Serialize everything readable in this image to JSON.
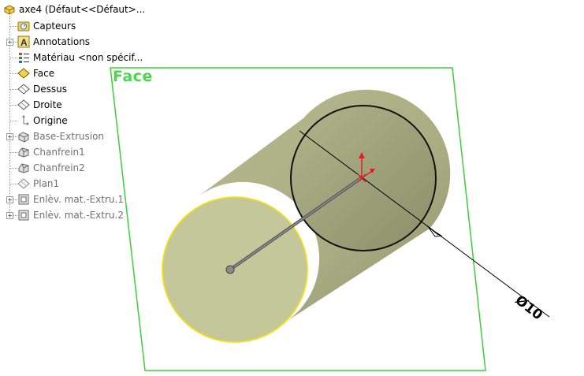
{
  "feature_tree": {
    "root": {
      "label": "axe4  (Défaut<<Défaut>...",
      "icon": "part-icon"
    },
    "items": [
      {
        "label": "Capteurs",
        "icon": "sensor-folder-icon",
        "expandable": false,
        "dim": false
      },
      {
        "label": "Annotations",
        "icon": "annotation-icon",
        "expandable": true,
        "dim": false
      },
      {
        "label": "Matériau <non spécif...",
        "icon": "material-icon",
        "expandable": false,
        "dim": false
      },
      {
        "label": "Face",
        "icon": "plane-icon",
        "expandable": false,
        "dim": false,
        "selected_plane": true
      },
      {
        "label": "Dessus",
        "icon": "plane-icon",
        "expandable": false,
        "dim": false
      },
      {
        "label": "Droite",
        "icon": "plane-icon",
        "expandable": false,
        "dim": false
      },
      {
        "label": "Origine",
        "icon": "origin-icon",
        "expandable": false,
        "dim": false
      },
      {
        "label": "Base-Extrusion",
        "icon": "extrude-feature-icon",
        "expandable": true,
        "dim": true
      },
      {
        "label": "Chanfrein1",
        "icon": "chamfer-icon",
        "expandable": false,
        "dim": true
      },
      {
        "label": "Chanfrein2",
        "icon": "chamfer-icon",
        "expandable": false,
        "dim": true
      },
      {
        "label": "Plan1",
        "icon": "plane-icon",
        "expandable": false,
        "dim": true
      },
      {
        "label": "Enlèv. mat.-Extru.1",
        "icon": "cut-extrude-icon",
        "expandable": true,
        "dim": true
      },
      {
        "label": "Enlèv. mat.-Extru.2",
        "icon": "cut-extrude-icon",
        "expandable": true,
        "dim": true
      }
    ]
  },
  "viewport": {
    "plane_label": "Face",
    "dimension_text": "Ø10",
    "colors": {
      "plane": "#3ccf3c",
      "cylinder_face": "#c3c799",
      "cylinder_body": "#b0b489",
      "selected_edge": "#f2e21a",
      "origin_arrow": "#e02020"
    }
  }
}
